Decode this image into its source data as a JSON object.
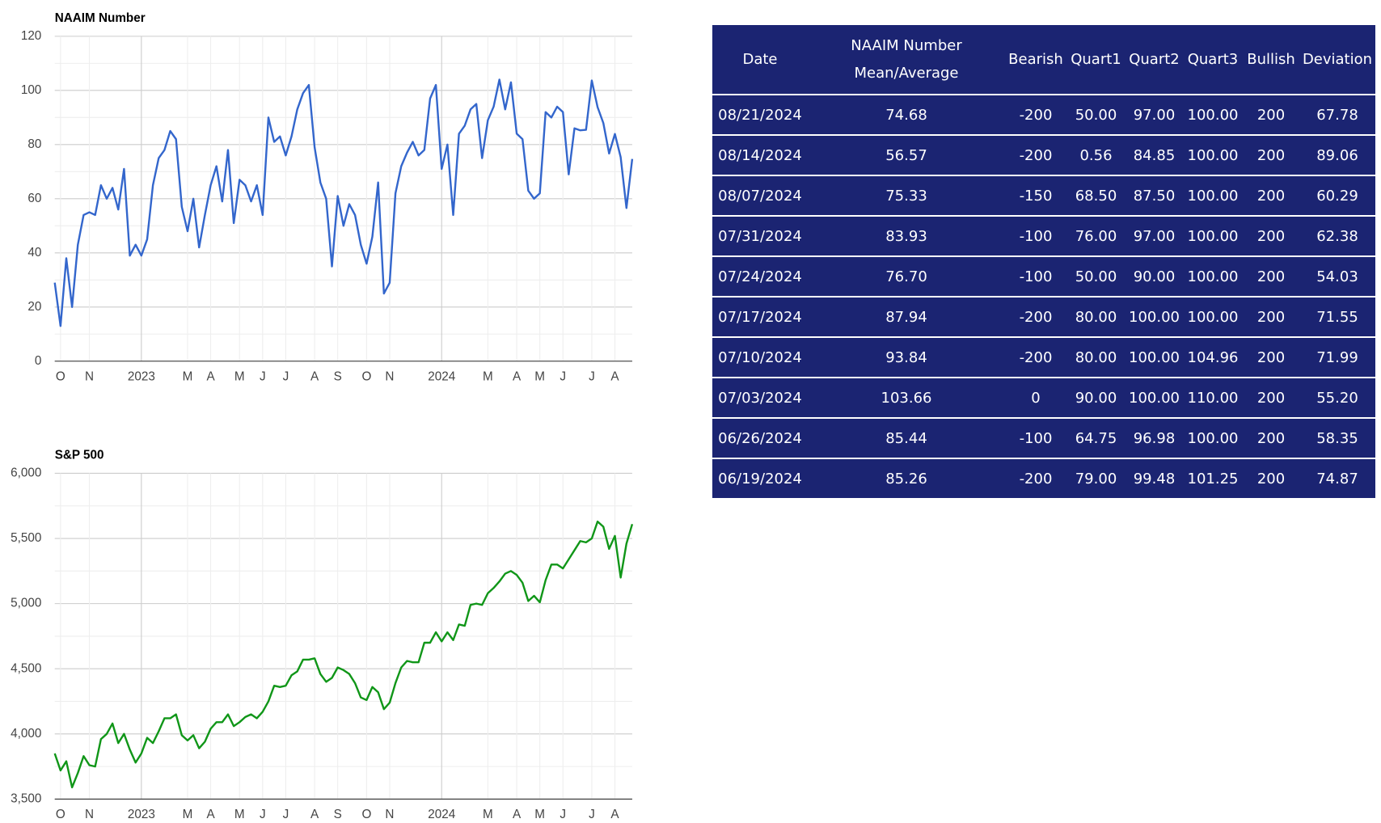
{
  "chart_data": [
    {
      "type": "line",
      "title": "NAAIM Number",
      "categories": [
        null,
        "O",
        null,
        null,
        null,
        null,
        "N",
        null,
        null,
        null,
        null,
        null,
        null,
        null,
        null,
        "2023",
        null,
        null,
        null,
        null,
        null,
        null,
        null,
        "M",
        null,
        null,
        null,
        "A",
        null,
        null,
        null,
        null,
        "M",
        null,
        null,
        null,
        "J",
        null,
        null,
        null,
        "J",
        null,
        null,
        null,
        null,
        "A",
        null,
        null,
        null,
        "S",
        null,
        null,
        null,
        null,
        "O",
        null,
        null,
        null,
        "N",
        null,
        null,
        null,
        null,
        null,
        null,
        null,
        null,
        "2024",
        null,
        null,
        null,
        null,
        null,
        null,
        null,
        "M",
        null,
        null,
        null,
        null,
        "A",
        null,
        null,
        null,
        "M",
        null,
        null,
        null,
        "J",
        null,
        null,
        null,
        null,
        "J",
        null,
        null,
        null,
        "A",
        null,
        null,
        null
      ],
      "series": [
        {
          "name": "NAAIM Number",
          "color": "#3366cc",
          "values": [
            29,
            13,
            38,
            20,
            43,
            54,
            55,
            54,
            65,
            60,
            64,
            56,
            71,
            39,
            43,
            39,
            45,
            65,
            75,
            78,
            85,
            82,
            57,
            48,
            60,
            42,
            54,
            65,
            72,
            59,
            78,
            51,
            67,
            65,
            59,
            65,
            54,
            90,
            81,
            83,
            76,
            83,
            93,
            99,
            102,
            79,
            66,
            60,
            35,
            61,
            50,
            58,
            54,
            43,
            36,
            46,
            66,
            25,
            29,
            62,
            72,
            77,
            81,
            76,
            78,
            97,
            102,
            71,
            80,
            54,
            84,
            87,
            93,
            95,
            75,
            89,
            94,
            104,
            93,
            103,
            84,
            82,
            63,
            60,
            62,
            92,
            90,
            94,
            92,
            69,
            86,
            85.26,
            85.44,
            103.66,
            93.84,
            87.94,
            76.7,
            83.93,
            75.33,
            56.57,
            74.68
          ]
        }
      ],
      "ylim": [
        0,
        120
      ],
      "yticks": [
        0,
        20,
        40,
        60,
        80,
        100,
        120
      ],
      "grid": true
    },
    {
      "type": "line",
      "title": "S&P 500",
      "categories": [
        null,
        "O",
        null,
        null,
        null,
        null,
        "N",
        null,
        null,
        null,
        null,
        null,
        null,
        null,
        null,
        "2023",
        null,
        null,
        null,
        null,
        null,
        null,
        null,
        "M",
        null,
        null,
        null,
        "A",
        null,
        null,
        null,
        null,
        "M",
        null,
        null,
        null,
        "J",
        null,
        null,
        null,
        "J",
        null,
        null,
        null,
        null,
        "A",
        null,
        null,
        null,
        "S",
        null,
        null,
        null,
        null,
        "O",
        null,
        null,
        null,
        "N",
        null,
        null,
        null,
        null,
        null,
        null,
        null,
        null,
        "2024",
        null,
        null,
        null,
        null,
        null,
        null,
        null,
        "M",
        null,
        null,
        null,
        null,
        "A",
        null,
        null,
        null,
        "M",
        null,
        null,
        null,
        "J",
        null,
        null,
        null,
        null,
        "J",
        null,
        null,
        null,
        "A",
        null,
        null,
        null
      ],
      "series": [
        {
          "name": "S&P 500",
          "color": "#109618",
          "values": [
            3850,
            3720,
            3790,
            3590,
            3700,
            3830,
            3760,
            3750,
            3960,
            4000,
            4080,
            3930,
            4000,
            3880,
            3780,
            3850,
            3970,
            3930,
            4020,
            4120,
            4120,
            4150,
            3990,
            3950,
            3990,
            3890,
            3940,
            4040,
            4090,
            4090,
            4150,
            4060,
            4090,
            4130,
            4150,
            4120,
            4170,
            4250,
            4370,
            4360,
            4370,
            4450,
            4480,
            4570,
            4570,
            4580,
            4460,
            4400,
            4430,
            4510,
            4490,
            4460,
            4390,
            4280,
            4260,
            4360,
            4320,
            4190,
            4240,
            4390,
            4510,
            4560,
            4550,
            4550,
            4700,
            4700,
            4780,
            4710,
            4780,
            4720,
            4840,
            4830,
            4990,
            5000,
            4990,
            5080,
            5120,
            5170,
            5230,
            5250,
            5220,
            5160,
            5020,
            5060,
            5010,
            5180,
            5300,
            5300,
            5270,
            5340,
            5410,
            5480,
            5470,
            5500,
            5630,
            5590,
            5420,
            5520,
            5200,
            5460,
            5610
          ]
        }
      ],
      "ylim": [
        3500,
        6000
      ],
      "yticks": [
        {
          "value": 3500,
          "label": "3,500"
        },
        {
          "value": 4000,
          "label": "4,000"
        },
        {
          "value": 4500,
          "label": "4,500"
        },
        {
          "value": 5000,
          "label": "5,000"
        },
        {
          "value": 5500,
          "label": "5,500"
        },
        {
          "value": 6000,
          "label": "6,000"
        }
      ],
      "grid": true
    }
  ],
  "table": {
    "columns": [
      "Date",
      "NAAIM Number Mean/Average",
      "Bearish",
      "Quart1",
      "Quart2",
      "Quart3",
      "Bullish",
      "Deviation"
    ],
    "rows": [
      [
        "08/21/2024",
        "74.68",
        "-200",
        "50.00",
        "97.00",
        "100.00",
        "200",
        "67.78"
      ],
      [
        "08/14/2024",
        "56.57",
        "-200",
        "0.56",
        "84.85",
        "100.00",
        "200",
        "89.06"
      ],
      [
        "08/07/2024",
        "75.33",
        "-150",
        "68.50",
        "87.50",
        "100.00",
        "200",
        "60.29"
      ],
      [
        "07/31/2024",
        "83.93",
        "-100",
        "76.00",
        "97.00",
        "100.00",
        "200",
        "62.38"
      ],
      [
        "07/24/2024",
        "76.70",
        "-100",
        "50.00",
        "90.00",
        "100.00",
        "200",
        "54.03"
      ],
      [
        "07/17/2024",
        "87.94",
        "-200",
        "80.00",
        "100.00",
        "100.00",
        "200",
        "71.55"
      ],
      [
        "07/10/2024",
        "93.84",
        "-200",
        "80.00",
        "100.00",
        "104.96",
        "200",
        "71.99"
      ],
      [
        "07/03/2024",
        "103.66",
        "0",
        "90.00",
        "100.00",
        "110.00",
        "200",
        "55.20"
      ],
      [
        "06/26/2024",
        "85.44",
        "-100",
        "64.75",
        "96.98",
        "100.00",
        "200",
        "58.35"
      ],
      [
        "06/19/2024",
        "85.26",
        "-200",
        "79.00",
        "99.48",
        "101.25",
        "200",
        "74.87"
      ]
    ]
  }
}
